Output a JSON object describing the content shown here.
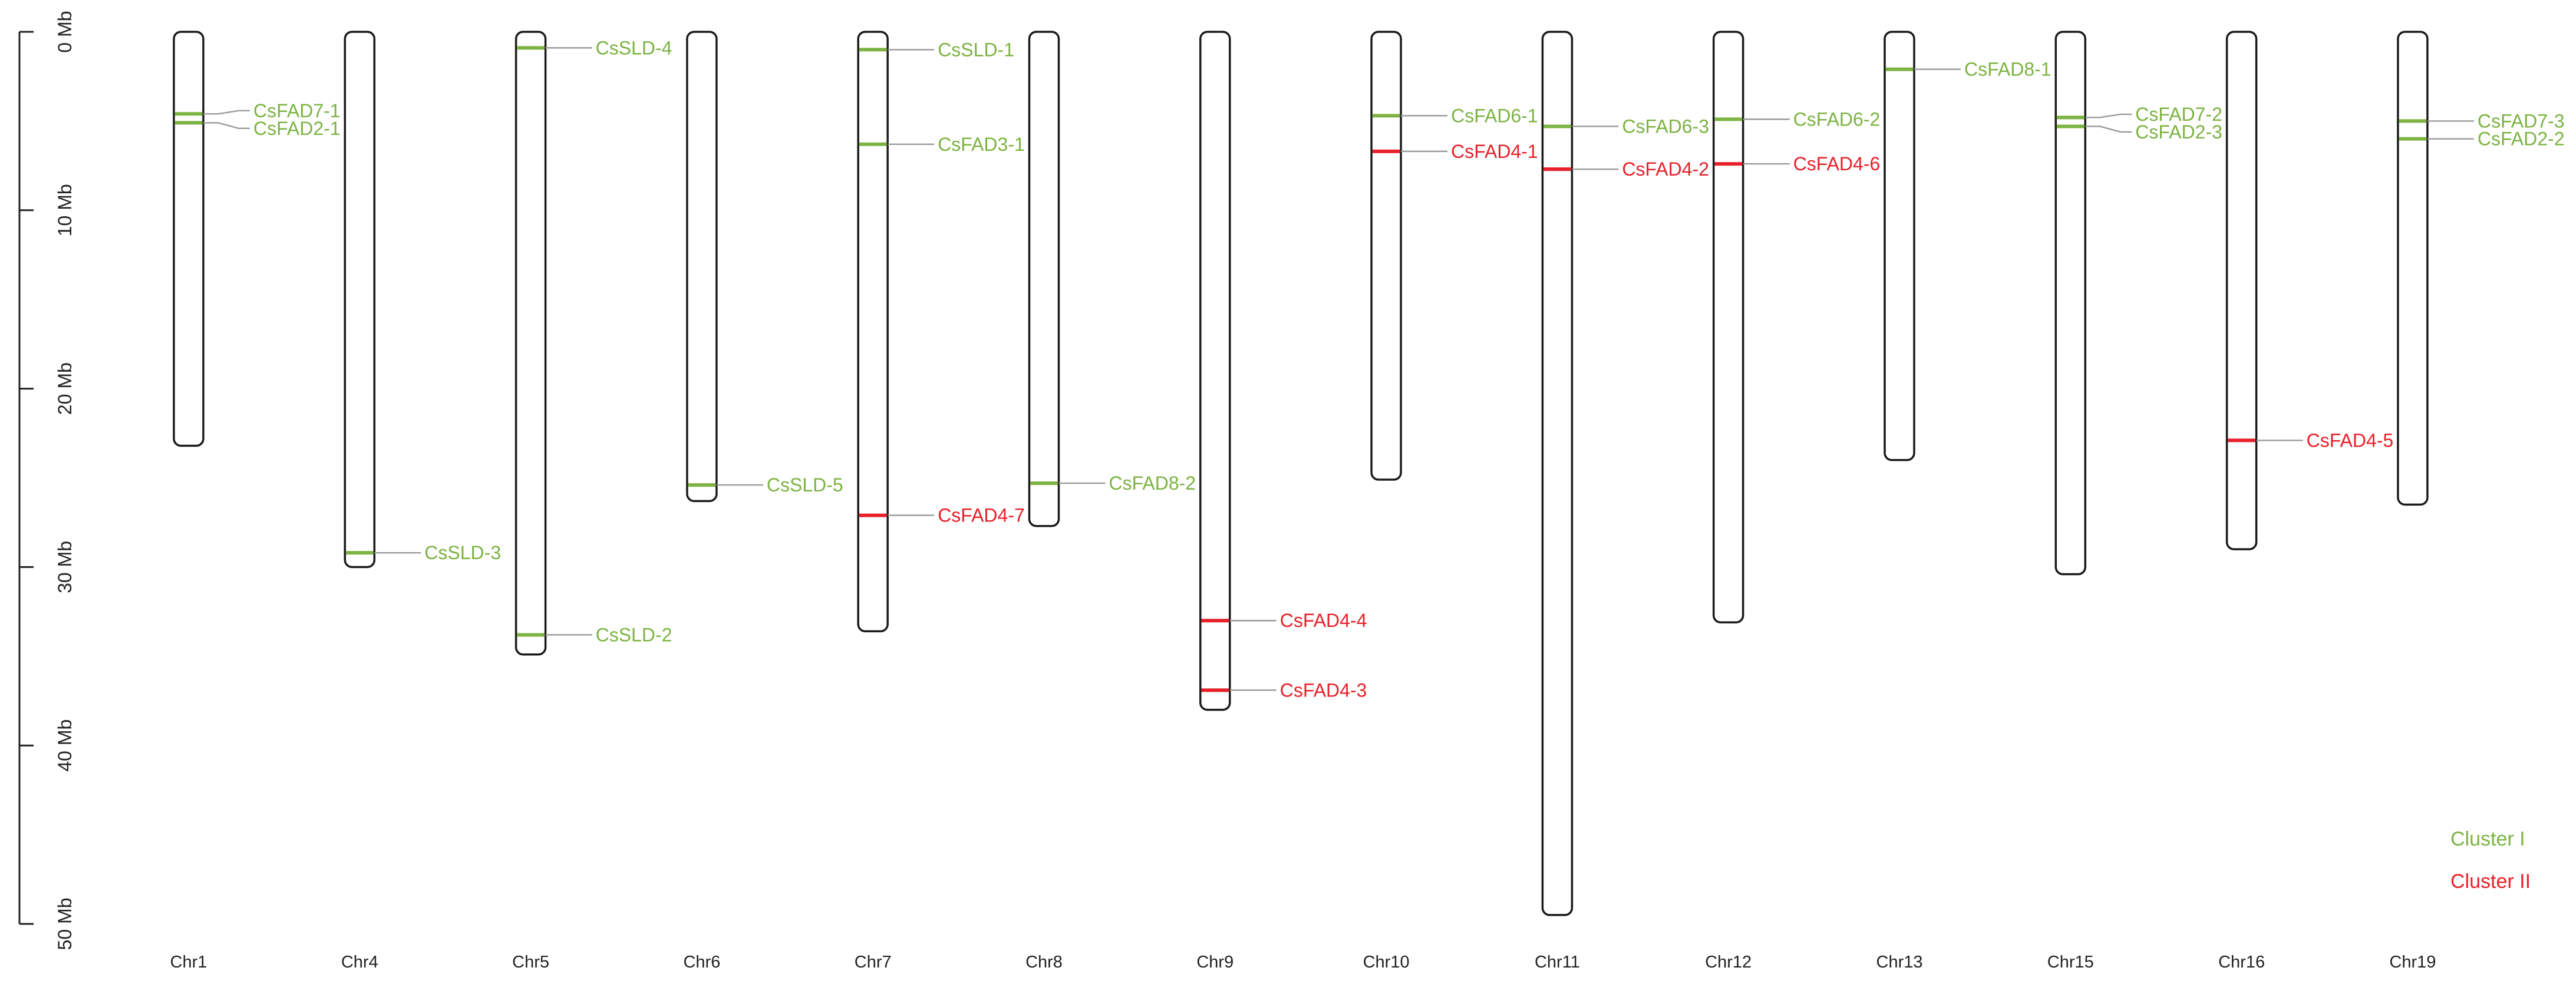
{
  "chart_data": {
    "type": "chromosome-map",
    "unit": "Mb",
    "y_axis": {
      "range": [
        0,
        50
      ],
      "ticks": [
        {
          "value": 0,
          "label": "0 Mb"
        },
        {
          "value": 10,
          "label": "10 Mb"
        },
        {
          "value": 20,
          "label": "20 Mb"
        },
        {
          "value": 30,
          "label": "30 Mb"
        },
        {
          "value": 40,
          "label": "40 Mb"
        },
        {
          "value": 50,
          "label": "50 Mb"
        }
      ]
    },
    "clusters": [
      {
        "id": "I",
        "label": "Cluster I",
        "color": "#7cb342"
      },
      {
        "id": "II",
        "label": "Cluster II",
        "color": "#e8202a"
      }
    ],
    "chromosomes": [
      {
        "name": "Chr1",
        "length_mb": 23.2,
        "genes": [
          {
            "name": "CsFAD7-1",
            "position_mb": 4.6,
            "cluster": "I"
          },
          {
            "name": "CsFAD2-1",
            "position_mb": 5.1,
            "cluster": "I"
          }
        ]
      },
      {
        "name": "Chr4",
        "length_mb": 30.0,
        "genes": [
          {
            "name": "CsSLD-3",
            "position_mb": 29.2,
            "cluster": "I"
          }
        ]
      },
      {
        "name": "Chr5",
        "length_mb": 34.9,
        "genes": [
          {
            "name": "CsSLD-4",
            "position_mb": 0.9,
            "cluster": "I"
          },
          {
            "name": "CsSLD-2",
            "position_mb": 33.8,
            "cluster": "I"
          }
        ]
      },
      {
        "name": "Chr6",
        "length_mb": 26.3,
        "genes": [
          {
            "name": "CsSLD-5",
            "position_mb": 25.4,
            "cluster": "I"
          }
        ]
      },
      {
        "name": "Chr7",
        "length_mb": 33.6,
        "genes": [
          {
            "name": "CsSLD-1",
            "position_mb": 1.0,
            "cluster": "I"
          },
          {
            "name": "CsFAD3-1",
            "position_mb": 6.3,
            "cluster": "I"
          },
          {
            "name": "CsFAD4-7",
            "position_mb": 27.1,
            "cluster": "II"
          }
        ]
      },
      {
        "name": "Chr8",
        "length_mb": 27.7,
        "genes": [
          {
            "name": "CsFAD8-2",
            "position_mb": 25.3,
            "cluster": "I"
          }
        ]
      },
      {
        "name": "Chr9",
        "length_mb": 38.0,
        "genes": [
          {
            "name": "CsFAD4-4",
            "position_mb": 33.0,
            "cluster": "II"
          },
          {
            "name": "CsFAD4-3",
            "position_mb": 36.9,
            "cluster": "II"
          }
        ]
      },
      {
        "name": "Chr10",
        "length_mb": 25.1,
        "genes": [
          {
            "name": "CsFAD6-1",
            "position_mb": 4.7,
            "cluster": "I"
          },
          {
            "name": "CsFAD4-1",
            "position_mb": 6.7,
            "cluster": "II"
          }
        ]
      },
      {
        "name": "Chr11",
        "length_mb": 49.5,
        "genes": [
          {
            "name": "CsFAD6-3",
            "position_mb": 5.3,
            "cluster": "I"
          },
          {
            "name": "CsFAD4-2",
            "position_mb": 7.7,
            "cluster": "II"
          }
        ]
      },
      {
        "name": "Chr12",
        "length_mb": 33.1,
        "genes": [
          {
            "name": "CsFAD6-2",
            "position_mb": 4.9,
            "cluster": "I"
          },
          {
            "name": "CsFAD4-6",
            "position_mb": 7.4,
            "cluster": "II"
          }
        ]
      },
      {
        "name": "Chr13",
        "length_mb": 24.0,
        "genes": [
          {
            "name": "CsFAD8-1",
            "position_mb": 2.1,
            "cluster": "I"
          }
        ]
      },
      {
        "name": "Chr15",
        "length_mb": 30.4,
        "genes": [
          {
            "name": "CsFAD7-2",
            "position_mb": 4.8,
            "cluster": "I"
          },
          {
            "name": "CsFAD2-3",
            "position_mb": 5.3,
            "cluster": "I"
          }
        ]
      },
      {
        "name": "Chr16",
        "length_mb": 29.0,
        "genes": [
          {
            "name": "CsFAD4-5",
            "position_mb": 22.9,
            "cluster": "II"
          }
        ]
      },
      {
        "name": "Chr19",
        "length_mb": 26.5,
        "genes": [
          {
            "name": "CsFAD7-3",
            "position_mb": 5.0,
            "cluster": "I"
          },
          {
            "name": "CsFAD2-2",
            "position_mb": 6.0,
            "cluster": "I"
          }
        ]
      }
    ]
  }
}
